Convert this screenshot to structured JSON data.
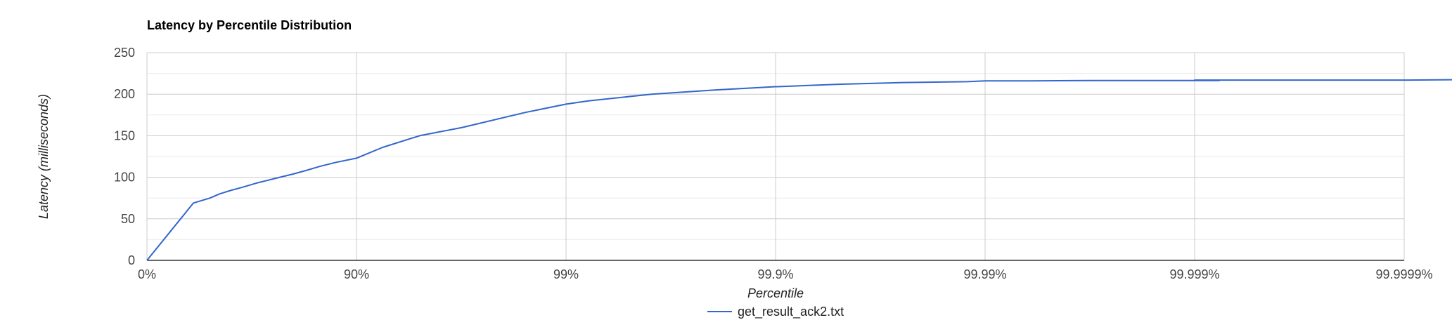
{
  "chart_data": {
    "type": "line",
    "title": "Latency by Percentile Distribution",
    "xlabel": "Percentile",
    "ylabel": "Latency (milliseconds)",
    "x_scale": "percentile-log (nines)",
    "x_ticks": [
      "0%",
      "90%",
      "99%",
      "99.9%",
      "99.99%",
      "99.999%",
      "99.9999%"
    ],
    "y_ticks": [
      "0",
      "50",
      "100",
      "150",
      "200",
      "250"
    ],
    "ylim": [
      0,
      250
    ],
    "grid": true,
    "legend_position": "bottom",
    "series": [
      {
        "name": "get_result_ack2.txt",
        "color": "#3366cc",
        "x": [
          0,
          40,
          50,
          55,
          60,
          65,
          70,
          75,
          80,
          82.5,
          85,
          87.5,
          90,
          92.5,
          95,
          96.875,
          98.4375,
          99,
          99.21875,
          99.609375,
          99.8046875,
          99.9,
          99.90234375,
          99.951171875,
          99.9755859375,
          99.98779296875,
          99.99,
          99.993896484375,
          99.9969482421875,
          99.99847412109375,
          99.99923706054688,
          99.999,
          99.99961853027344,
          99.99980926513672,
          99.99990463256836,
          99.99995231628418,
          99.9999618
        ],
        "y": [
          0,
          69,
          75,
          80,
          84,
          88,
          93,
          98,
          104,
          108,
          113,
          118,
          123,
          136,
          150,
          160,
          178,
          188,
          192,
          200,
          205,
          209,
          209,
          212,
          214,
          215,
          216,
          216,
          216.5,
          216.5,
          216.5,
          217,
          217,
          217,
          217,
          217.5,
          217.5
        ]
      }
    ]
  }
}
